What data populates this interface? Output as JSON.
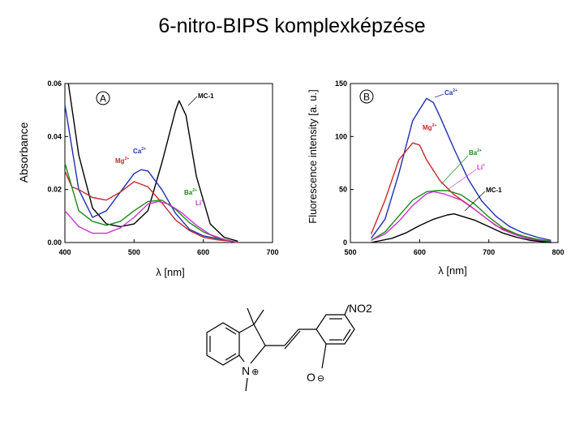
{
  "page_title": "6-nitro-BIPS komplexképzése",
  "chart_data": [
    {
      "type": "line",
      "panel_label": "A",
      "xlabel": "λ [nm]",
      "ylabel": "Absorbance",
      "xlim": [
        400,
        700
      ],
      "ylim": [
        0,
        0.06
      ],
      "x_ticks": [
        "400",
        "500",
        "600",
        "700"
      ],
      "y_ticks": [
        "0.00",
        "0.02",
        "0.04",
        "0.06"
      ],
      "series": [
        {
          "name": "MC-1",
          "color": "#000000",
          "x": [
            405,
            420,
            440,
            460,
            480,
            500,
            520,
            540,
            560,
            565,
            575,
            590,
            610,
            630,
            650
          ],
          "y": [
            0.06,
            0.033,
            0.013,
            0.007,
            0.006,
            0.007,
            0.012,
            0.03,
            0.05,
            0.0535,
            0.048,
            0.025,
            0.007,
            0.002,
            0.0005
          ]
        },
        {
          "name": "Ca2+",
          "color": "#1f2fb0",
          "x": [
            400,
            420,
            440,
            460,
            480,
            500,
            510,
            520,
            540,
            560,
            580,
            600,
            620,
            640,
            650
          ],
          "y": [
            0.052,
            0.02,
            0.0095,
            0.012,
            0.019,
            0.026,
            0.0275,
            0.027,
            0.02,
            0.011,
            0.005,
            0.0025,
            0.0015,
            0.0005,
            0
          ]
        },
        {
          "name": "Mg2+",
          "color": "#c42a2a",
          "x": [
            400,
            410,
            420,
            440,
            460,
            480,
            500,
            520,
            540,
            560,
            580,
            600,
            620,
            640,
            650
          ],
          "y": [
            0.027,
            0.021,
            0.02,
            0.017,
            0.016,
            0.019,
            0.023,
            0.021,
            0.015,
            0.0085,
            0.0045,
            0.002,
            0.001,
            0.0005,
            0
          ]
        },
        {
          "name": "Ba2+",
          "color": "#1a8a1a",
          "x": [
            400,
            420,
            440,
            460,
            480,
            500,
            520,
            540,
            560,
            580,
            600,
            620,
            640,
            650
          ],
          "y": [
            0.03,
            0.012,
            0.008,
            0.0065,
            0.008,
            0.012,
            0.0155,
            0.016,
            0.0125,
            0.0075,
            0.004,
            0.0018,
            0.0006,
            0
          ]
        },
        {
          "name": "Li+",
          "color": "#cc33cc",
          "x": [
            400,
            420,
            440,
            460,
            480,
            500,
            520,
            535,
            550,
            570,
            590,
            610,
            630,
            650
          ],
          "y": [
            0.012,
            0.006,
            0.0035,
            0.0035,
            0.0055,
            0.0095,
            0.0145,
            0.0155,
            0.0145,
            0.011,
            0.0065,
            0.003,
            0.0012,
            0
          ]
        }
      ]
    },
    {
      "type": "line",
      "panel_label": "B",
      "xlabel": "λ [nm]",
      "ylabel": "Fluorescence intensity [a. u.]",
      "xlim": [
        500,
        800
      ],
      "ylim": [
        0,
        150
      ],
      "x_ticks": [
        "500",
        "600",
        "700",
        "800"
      ],
      "y_ticks": [
        "0",
        "50",
        "100",
        "150"
      ],
      "series": [
        {
          "name": "Ca2+",
          "color": "#1f2fb0",
          "x": [
            530,
            550,
            570,
            590,
            610,
            620,
            630,
            650,
            670,
            690,
            710,
            730,
            750,
            770,
            790
          ],
          "y": [
            4,
            22,
            65,
            115,
            136,
            132,
            118,
            88,
            60,
            39,
            25,
            15,
            9,
            5,
            2
          ]
        },
        {
          "name": "Mg2+",
          "color": "#c42a2a",
          "x": [
            530,
            550,
            570,
            590,
            600,
            610,
            630,
            650,
            670,
            690,
            710,
            730,
            750,
            770,
            790
          ],
          "y": [
            8,
            40,
            78,
            94,
            92,
            78,
            58,
            45,
            36,
            26,
            16,
            10,
            6,
            3,
            1
          ]
        },
        {
          "name": "Ba2+",
          "color": "#1a8a1a",
          "x": [
            530,
            550,
            570,
            590,
            610,
            625,
            640,
            660,
            680,
            700,
            720,
            740,
            760,
            780,
            790
          ],
          "y": [
            2,
            10,
            25,
            40,
            48,
            49,
            49,
            45,
            36,
            24,
            14,
            8,
            4,
            2,
            1
          ]
        },
        {
          "name": "Li+",
          "color": "#cc33cc",
          "x": [
            530,
            550,
            570,
            590,
            610,
            620,
            635,
            660,
            680,
            700,
            720,
            740,
            760,
            780,
            790
          ],
          "y": [
            2,
            8,
            20,
            35,
            46,
            48,
            46,
            40,
            31,
            21,
            12,
            7,
            3,
            1,
            1
          ]
        },
        {
          "name": "MC-1",
          "color": "#000000",
          "x": [
            530,
            560,
            580,
            600,
            620,
            640,
            650,
            660,
            680,
            700,
            720,
            740,
            760,
            790
          ],
          "y": [
            0,
            4,
            9,
            16,
            22,
            26,
            27,
            25,
            21,
            15,
            9,
            5,
            2,
            0
          ]
        }
      ]
    }
  ],
  "panel_a_labels": {
    "mc1": "MC-1",
    "ca": "Ca",
    "ca_sup": "2+",
    "mg": "Mg",
    "mg_sup": "2+",
    "ba": "Ba",
    "ba_sup": "2+",
    "li": "Li",
    "li_sup": "+"
  },
  "panel_b_labels": {
    "ca": "Ca",
    "ca_sup": "2+",
    "mg": "Mg",
    "mg_sup": "2+",
    "ba": "Ba",
    "ba_sup": "2+",
    "li": "Li",
    "li_sup": "+",
    "mc1": "MC-1"
  },
  "molecule": {
    "nitro": "NO2",
    "nitrogen": "N",
    "nitrogen_charge": "⊕",
    "oxygen": "O",
    "oxygen_charge": "⊖"
  }
}
